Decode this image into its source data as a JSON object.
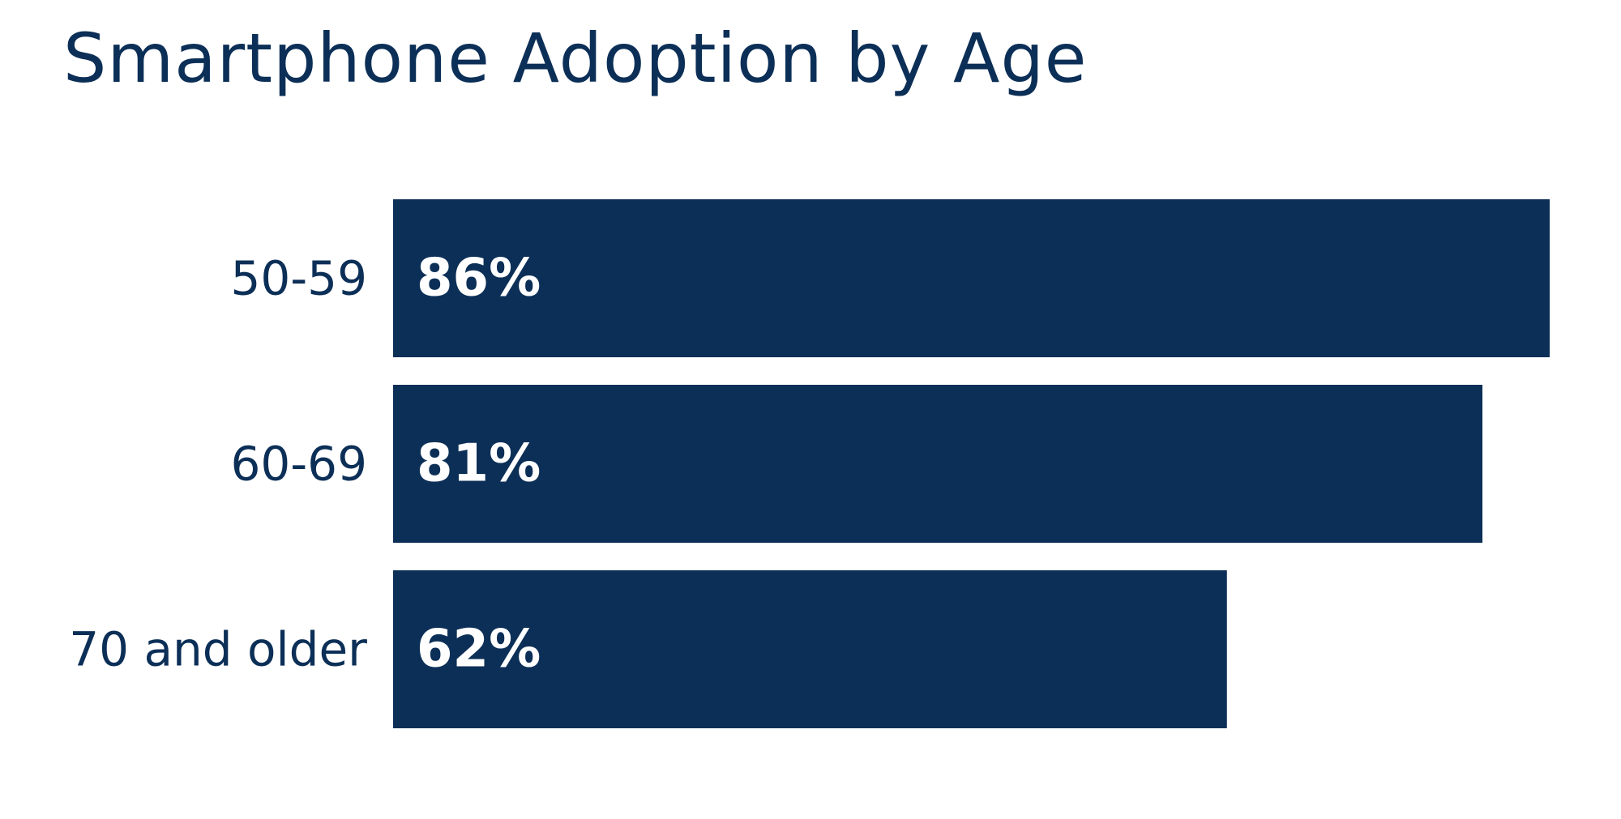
{
  "title": "Smartphone Adoption by Age",
  "colors": {
    "bar": "#0c2f57",
    "category_text": "#0c2f57",
    "value_text": "#ffffff",
    "background": "#ffffff"
  },
  "chart_data": {
    "type": "bar",
    "orientation": "horizontal",
    "title": "Smartphone Adoption by Age",
    "xlabel": "",
    "ylabel": "",
    "categories": [
      "50-59",
      "60-69",
      "70 and older"
    ],
    "values": [
      86,
      81,
      62
    ],
    "value_labels": [
      "86%",
      "81%",
      "62%"
    ],
    "unit": "%",
    "xlim": [
      0,
      86
    ],
    "grid": false,
    "legend": "none"
  }
}
